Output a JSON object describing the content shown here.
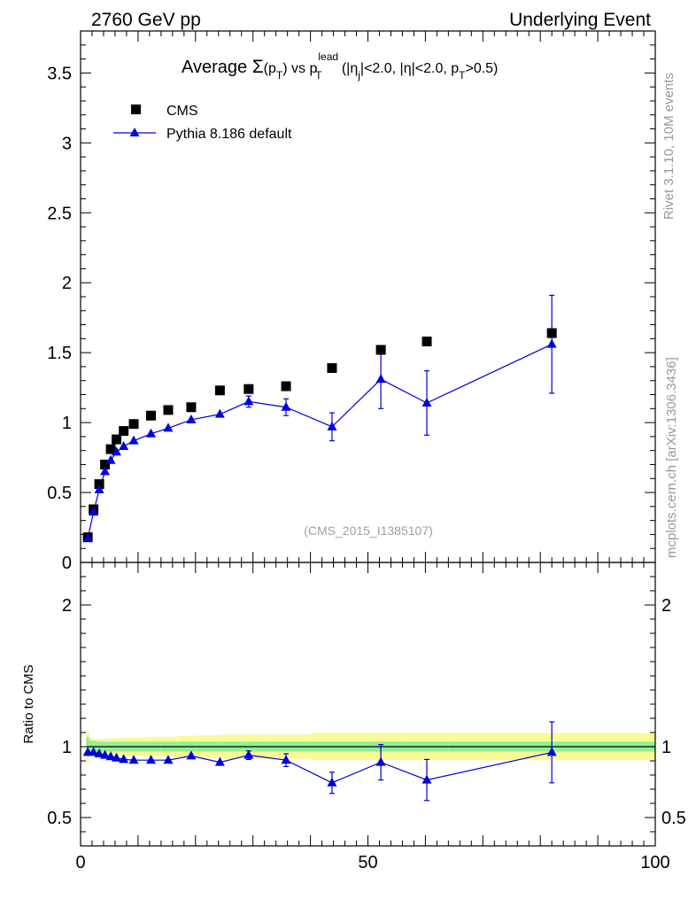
{
  "header": {
    "left": "2760 GeV pp",
    "right": "Underlying Event"
  },
  "side": {
    "rivet": "Rivet 3.1.10,  10M events",
    "mcplots": "mcplots.cern.ch [arXiv:1306.3436]"
  },
  "chart_data": {
    "type": "scatter",
    "title_parts": {
      "prefix": "Average ",
      "sigma": "Σ",
      "pt_open": "(p",
      "pt_sub": "T",
      "pt_close": ")",
      "vs": " vs p",
      "lead_sup": "lead",
      "lead_sub": "T",
      "cut1a": " (|η",
      "cut1_sub": "j",
      "cut1b": "|<2.0, |η|<2.0, p",
      "cut2_sub": "T",
      "cut2b": ">0.5)"
    },
    "analysis_id": "(CMS_2015_I1385107)",
    "ylabel_ratio": "Ratio to CMS",
    "xlim": [
      0,
      100
    ],
    "ylim": [
      0,
      3.8
    ],
    "ratio_ylim": [
      0.3,
      2.3
    ],
    "x_ticks": [
      0,
      50,
      100
    ],
    "x_tick_labels": [
      "0",
      "50",
      "100"
    ],
    "y_ticks": [
      0,
      0.5,
      1,
      1.5,
      2,
      2.5,
      3,
      3.5
    ],
    "y_tick_labels": [
      "0",
      "0.5",
      "1",
      "1.5",
      "2",
      "2.5",
      "3",
      "3.5"
    ],
    "ratio_ticks": [
      0.5,
      1,
      2
    ],
    "ratio_tick_labels": [
      "0.5",
      "1",
      "2"
    ],
    "legend": {
      "position": "top-left",
      "entries": [
        "CMS",
        "Pythia 8.186 default"
      ]
    },
    "series": [
      {
        "name": "CMS",
        "marker": "square",
        "color": "#000000",
        "x": [
          1.25,
          2.25,
          3.25,
          4.25,
          5.25,
          6.25,
          7.5,
          9.25,
          12.25,
          15.25,
          19.25,
          24.25,
          29.25,
          35.75,
          43.75,
          52.25,
          60.25,
          82.0
        ],
        "y": [
          0.18,
          0.38,
          0.56,
          0.7,
          0.81,
          0.88,
          0.94,
          0.99,
          1.05,
          1.09,
          1.11,
          1.23,
          1.24,
          1.26,
          1.39,
          1.52,
          1.58,
          1.64
        ]
      },
      {
        "name": "Pythia 8.186 default",
        "marker": "triangle",
        "color": "#0000dd",
        "x": [
          1.25,
          2.25,
          3.25,
          4.25,
          5.25,
          6.25,
          7.5,
          9.25,
          12.25,
          15.25,
          19.25,
          24.25,
          29.25,
          35.75,
          43.75,
          52.25,
          60.25,
          82.0
        ],
        "y": [
          0.17,
          0.36,
          0.52,
          0.65,
          0.73,
          0.79,
          0.83,
          0.87,
          0.92,
          0.96,
          1.02,
          1.06,
          1.15,
          1.11,
          0.97,
          1.31,
          1.14,
          1.56
        ],
        "yerr": [
          0,
          0,
          0,
          0,
          0,
          0,
          0,
          0,
          0,
          0,
          0,
          0,
          0.04,
          0.06,
          0.1,
          0.21,
          0.23,
          0.35
        ],
        "ratio": [
          0.96,
          0.96,
          0.95,
          0.94,
          0.93,
          0.92,
          0.91,
          0.905,
          0.905,
          0.905,
          0.935,
          0.89,
          0.94,
          0.905,
          0.745,
          0.89,
          0.765,
          0.96
        ],
        "ratio_err": [
          0,
          0,
          0,
          0,
          0,
          0,
          0,
          0,
          0,
          0,
          0,
          0,
          0.03,
          0.045,
          0.075,
          0.125,
          0.145,
          0.215
        ]
      }
    ],
    "ratio_bands": {
      "x_edges": [
        1,
        1.5,
        2,
        3,
        4,
        5,
        6,
        7,
        8,
        10,
        12,
        14,
        17,
        20,
        24,
        28,
        32,
        40,
        48,
        56,
        64,
        100
      ],
      "green_half": [
        0.07,
        0.045,
        0.04,
        0.035,
        0.035,
        0.035,
        0.035,
        0.035,
        0.035,
        0.035,
        0.035,
        0.035,
        0.035,
        0.035,
        0.035,
        0.035,
        0.035,
        0.035,
        0.035,
        0.035,
        0.035
      ],
      "yellow_half": [
        0.11,
        0.065,
        0.055,
        0.055,
        0.055,
        0.06,
        0.06,
        0.065,
        0.065,
        0.065,
        0.07,
        0.07,
        0.075,
        0.08,
        0.085,
        0.085,
        0.085,
        0.095,
        0.095,
        0.095,
        0.095
      ],
      "green_color": "#90f090",
      "yellow_color": "#fafa96"
    }
  }
}
